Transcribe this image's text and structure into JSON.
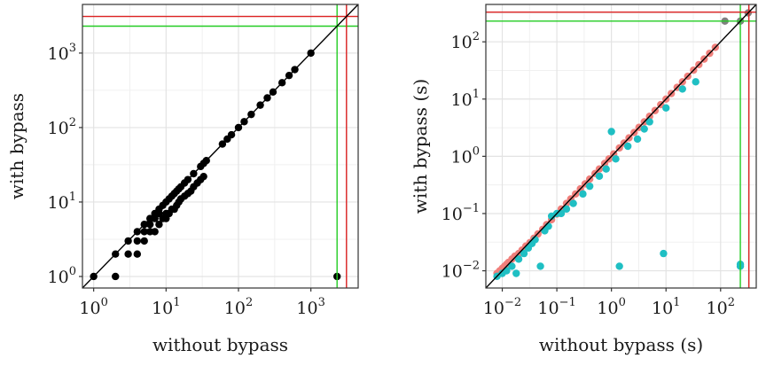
{
  "chart_data": [
    {
      "type": "scatter",
      "title": "",
      "xlabel": "without bypass",
      "ylabel": "with bypass",
      "log_scale": {
        "x": true,
        "y": true
      },
      "xlim": [
        0.7,
        4500
      ],
      "ylim": [
        0.7,
        4500
      ],
      "x_ticks": [
        {
          "value": 1,
          "base": "10",
          "exp": "0"
        },
        {
          "value": 10,
          "base": "10",
          "exp": "1"
        },
        {
          "value": 100,
          "base": "10",
          "exp": "2"
        },
        {
          "value": 1000,
          "base": "10",
          "exp": "3"
        }
      ],
      "y_ticks": [
        {
          "value": 1,
          "base": "10",
          "exp": "0"
        },
        {
          "value": 10,
          "base": "10",
          "exp": "1"
        },
        {
          "value": 100,
          "base": "10",
          "exp": "2"
        },
        {
          "value": 1000,
          "base": "10",
          "exp": "3"
        }
      ],
      "grid": true,
      "diagonal": true,
      "reference_lines": [
        {
          "value": 2300,
          "color": "#22cc22"
        },
        {
          "value": 3100,
          "color": "#dd2222"
        }
      ],
      "series": [
        {
          "color": "#000000",
          "points": [
            [
              1,
              1
            ],
            [
              2,
              1
            ],
            [
              2,
              2
            ],
            [
              3,
              2
            ],
            [
              3,
              3
            ],
            [
              4,
              2
            ],
            [
              4,
              3
            ],
            [
              4,
              4
            ],
            [
              5,
              3
            ],
            [
              5,
              4
            ],
            [
              5,
              5
            ],
            [
              6,
              4
            ],
            [
              6,
              5
            ],
            [
              6,
              6
            ],
            [
              7,
              4
            ],
            [
              7,
              6
            ],
            [
              7,
              7
            ],
            [
              8,
              5
            ],
            [
              8,
              7
            ],
            [
              8,
              8
            ],
            [
              9,
              6
            ],
            [
              9,
              9
            ],
            [
              10,
              6
            ],
            [
              10,
              7
            ],
            [
              10,
              10
            ],
            [
              11,
              7
            ],
            [
              11,
              11
            ],
            [
              12,
              8
            ],
            [
              12,
              12
            ],
            [
              13,
              8
            ],
            [
              13,
              13
            ],
            [
              14,
              9
            ],
            [
              14,
              14
            ],
            [
              15,
              10
            ],
            [
              15,
              15
            ],
            [
              16,
              11
            ],
            [
              16,
              16
            ],
            [
              18,
              12
            ],
            [
              18,
              18
            ],
            [
              20,
              13
            ],
            [
              20,
              20
            ],
            [
              22,
              14
            ],
            [
              24,
              16
            ],
            [
              24,
              24
            ],
            [
              27,
              18
            ],
            [
              30,
              20
            ],
            [
              30,
              30
            ],
            [
              33,
              22
            ],
            [
              33,
              33
            ],
            [
              36,
              36
            ],
            [
              60,
              60
            ],
            [
              70,
              70
            ],
            [
              80,
              80
            ],
            [
              100,
              100
            ],
            [
              120,
              120
            ],
            [
              150,
              150
            ],
            [
              200,
              200
            ],
            [
              250,
              250
            ],
            [
              300,
              300
            ],
            [
              400,
              400
            ],
            [
              500,
              500
            ],
            [
              600,
              600
            ],
            [
              1000,
              1000
            ],
            [
              2300,
              1
            ]
          ]
        }
      ]
    },
    {
      "type": "scatter",
      "title": "",
      "xlabel": "without bypass (s)",
      "ylabel": "with bypass (s)",
      "log_scale": {
        "x": true,
        "y": true
      },
      "xlim": [
        0.005,
        450
      ],
      "ylim": [
        0.005,
        450
      ],
      "x_ticks": [
        {
          "value": 0.01,
          "base": "10",
          "exp": "−2"
        },
        {
          "value": 0.1,
          "base": "10",
          "exp": "−1"
        },
        {
          "value": 1,
          "base": "10",
          "exp": "0"
        },
        {
          "value": 10,
          "base": "10",
          "exp": "1"
        },
        {
          "value": 100,
          "base": "10",
          "exp": "2"
        }
      ],
      "y_ticks": [
        {
          "value": 0.01,
          "base": "10",
          "exp": "−2"
        },
        {
          "value": 0.1,
          "base": "10",
          "exp": "−1"
        },
        {
          "value": 1,
          "base": "10",
          "exp": "0"
        },
        {
          "value": 10,
          "base": "10",
          "exp": "1"
        },
        {
          "value": 100,
          "base": "10",
          "exp": "2"
        }
      ],
      "grid": true,
      "diagonal": true,
      "reference_lines": [
        {
          "value": 230,
          "color": "#22cc22"
        },
        {
          "value": 330,
          "color": "#dd2222"
        }
      ],
      "series": [
        {
          "color": "#f07f7b",
          "points": [
            [
              0.008,
              0.009
            ],
            [
              0.009,
              0.01
            ],
            [
              0.01,
              0.011
            ],
            [
              0.011,
              0.012
            ],
            [
              0.012,
              0.013
            ],
            [
              0.013,
              0.014
            ],
            [
              0.015,
              0.016
            ],
            [
              0.017,
              0.018
            ],
            [
              0.02,
              0.02
            ],
            [
              0.023,
              0.023
            ],
            [
              0.027,
              0.027
            ],
            [
              0.032,
              0.031
            ],
            [
              0.038,
              0.037
            ],
            [
              0.045,
              0.044
            ],
            [
              0.055,
              0.053
            ],
            [
              0.065,
              0.064
            ],
            [
              0.08,
              0.078
            ],
            [
              0.1,
              0.098
            ],
            [
              0.12,
              0.12
            ],
            [
              0.15,
              0.15
            ],
            [
              0.18,
              0.18
            ],
            [
              0.22,
              0.22
            ],
            [
              0.27,
              0.27
            ],
            [
              0.33,
              0.33
            ],
            [
              0.4,
              0.4
            ],
            [
              0.5,
              0.5
            ],
            [
              0.6,
              0.6
            ],
            [
              0.75,
              0.75
            ],
            [
              0.9,
              0.9
            ],
            [
              1.1,
              1.1
            ],
            [
              1.4,
              1.4
            ],
            [
              1.7,
              1.7
            ],
            [
              2.1,
              2.1
            ],
            [
              2.6,
              2.6
            ],
            [
              3.2,
              3.2
            ],
            [
              4,
              4
            ],
            [
              5,
              5
            ],
            [
              6.3,
              6.3
            ],
            [
              8,
              8
            ],
            [
              10,
              10
            ],
            [
              12.5,
              12.5
            ],
            [
              16,
              16
            ],
            [
              20,
              20
            ],
            [
              25,
              25
            ],
            [
              32,
              32
            ],
            [
              40,
              40
            ],
            [
              50,
              50
            ],
            [
              63,
              63
            ],
            [
              80,
              80
            ]
          ]
        },
        {
          "color": "#1fbfc3",
          "points": [
            [
              0.008,
              0.008
            ],
            [
              0.01,
              0.009
            ],
            [
              0.012,
              0.01
            ],
            [
              0.015,
              0.012
            ],
            [
              0.018,
              0.009
            ],
            [
              0.02,
              0.016
            ],
            [
              0.025,
              0.02
            ],
            [
              0.03,
              0.025
            ],
            [
              0.035,
              0.03
            ],
            [
              0.04,
              0.035
            ],
            [
              0.05,
              0.012
            ],
            [
              0.06,
              0.05
            ],
            [
              0.07,
              0.06
            ],
            [
              0.08,
              0.09
            ],
            [
              0.1,
              0.1
            ],
            [
              0.12,
              0.1
            ],
            [
              0.15,
              0.12
            ],
            [
              0.2,
              0.15
            ],
            [
              0.3,
              0.22
            ],
            [
              0.4,
              0.3
            ],
            [
              0.6,
              0.45
            ],
            [
              0.8,
              0.6
            ],
            [
              1,
              2.7
            ],
            [
              1.2,
              0.9
            ],
            [
              1.4,
              0.012
            ],
            [
              2,
              1.5
            ],
            [
              3,
              2
            ],
            [
              4,
              3
            ],
            [
              5,
              4
            ],
            [
              9,
              0.02
            ],
            [
              10,
              7
            ],
            [
              20,
              15
            ],
            [
              35,
              20
            ],
            [
              230,
              0.012
            ],
            [
              230,
              0.013
            ]
          ]
        },
        {
          "color": "#808080",
          "points": [
            [
              120,
              230
            ],
            [
              230,
              230
            ],
            [
              320,
              320
            ]
          ]
        }
      ]
    }
  ]
}
